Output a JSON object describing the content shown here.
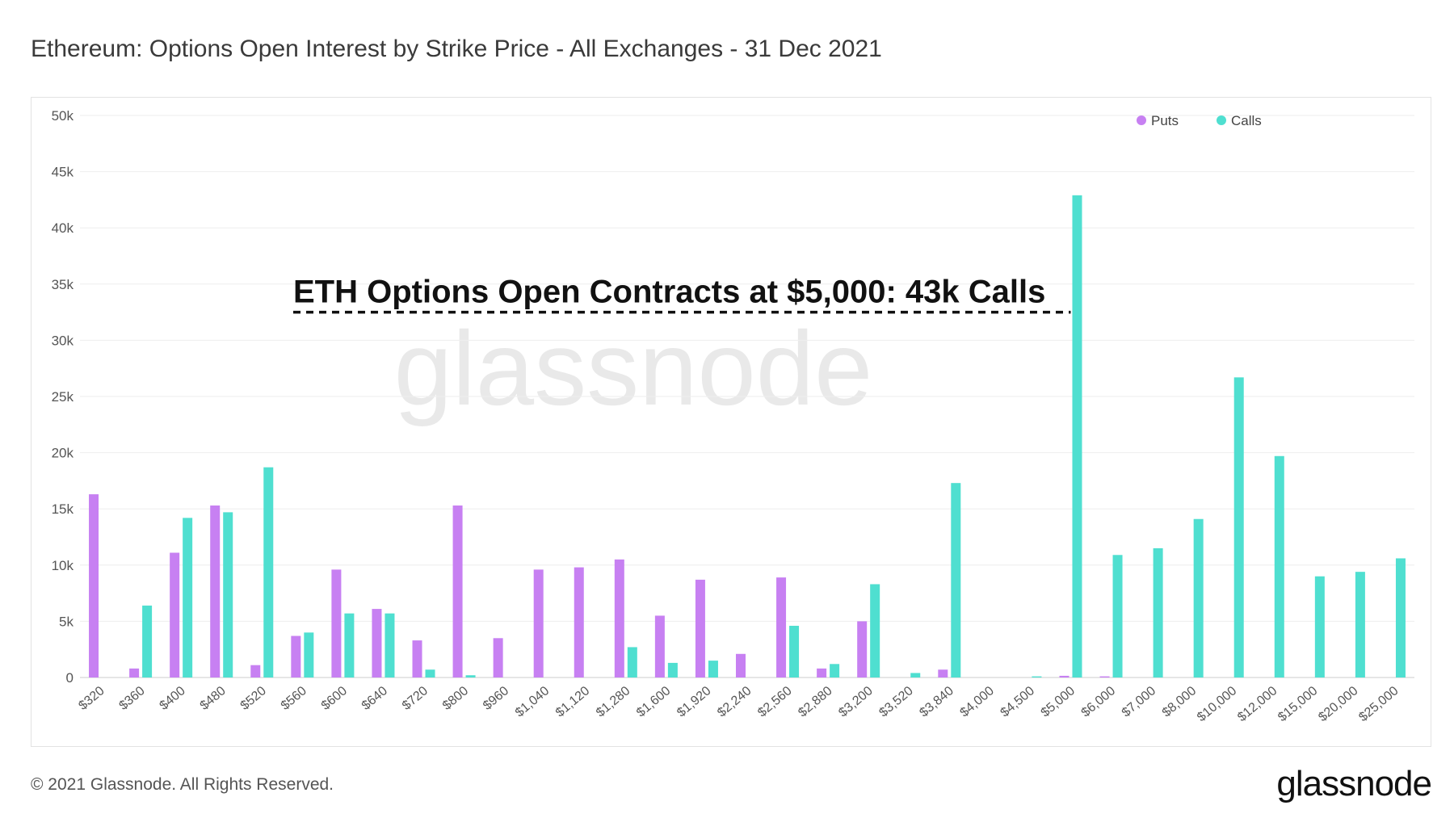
{
  "title": "Ethereum: Options Open Interest by Strike Price - All Exchanges - 31 Dec 2021",
  "watermark": "glassnode",
  "footer": {
    "copyright": "© 2021 Glassnode. All Rights Reserved.",
    "logo": "glassnode"
  },
  "colors": {
    "puts": "#c780f2",
    "calls": "#4fdfd0",
    "grid": "#eeeeee",
    "axis": "#cccccc"
  },
  "chart_data": {
    "type": "bar",
    "title": "Ethereum: Options Open Interest by Strike Price - All Exchanges - 31 Dec 2021",
    "categories": [
      "$320",
      "$360",
      "$400",
      "$480",
      "$520",
      "$560",
      "$600",
      "$640",
      "$720",
      "$800",
      "$960",
      "$1,040",
      "$1,120",
      "$1,280",
      "$1,600",
      "$1,920",
      "$2,240",
      "$2,560",
      "$2,880",
      "$3,200",
      "$3,520",
      "$3,840",
      "$4,000",
      "$4,500",
      "$5,000",
      "$6,000",
      "$7,000",
      "$8,000",
      "$10,000",
      "$12,000",
      "$15,000",
      "$20,000",
      "$25,000"
    ],
    "series": [
      {
        "name": "Puts",
        "values": [
          16300,
          800,
          11100,
          15300,
          1100,
          3700,
          9600,
          6100,
          3300,
          15300,
          3500,
          9600,
          9800,
          10500,
          5500,
          8700,
          2100,
          8900,
          800,
          5000,
          0,
          700,
          0,
          0,
          150,
          100,
          0,
          0,
          0,
          0,
          0,
          0,
          0
        ]
      },
      {
        "name": "Calls",
        "values": [
          0,
          6400,
          14200,
          14700,
          18700,
          4000,
          5700,
          5700,
          700,
          200,
          0,
          0,
          0,
          2700,
          1300,
          1500,
          0,
          4600,
          1200,
          8300,
          400,
          17300,
          0,
          100,
          42900,
          10900,
          11500,
          14100,
          26700,
          19700,
          9000,
          9400,
          10600
        ]
      }
    ],
    "ylim": [
      0,
      50000
    ],
    "yticks": [
      0,
      5000,
      10000,
      15000,
      20000,
      25000,
      30000,
      35000,
      40000,
      45000,
      50000
    ],
    "ytick_labels": [
      "0",
      "5k",
      "10k",
      "15k",
      "20k",
      "25k",
      "30k",
      "35k",
      "40k",
      "45k",
      "50k"
    ],
    "xlabel": "",
    "ylabel": "",
    "grid": true,
    "legend_position": "top-right",
    "annotation": {
      "text": "ETH Options Open Contracts at $5,000: 43k Calls",
      "category": "$5,000",
      "value": 32500
    }
  }
}
